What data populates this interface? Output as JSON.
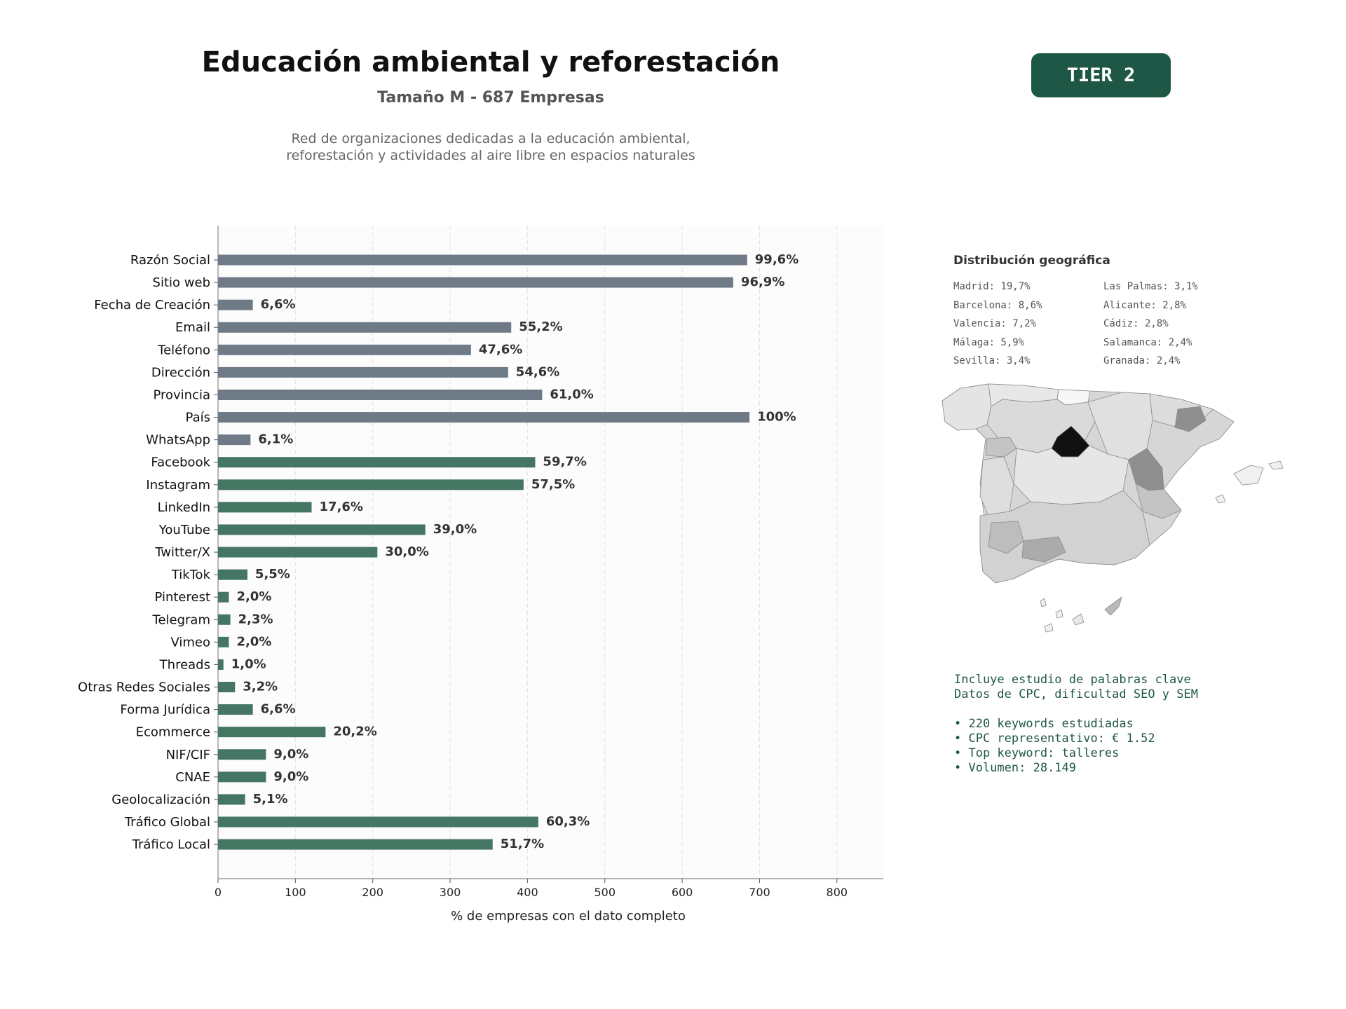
{
  "header": {
    "title": "Educación ambiental y reforestación",
    "subtitle": "Tamaño M - 687 Empresas",
    "description_line1": "Red de organizaciones dedicadas a la educación ambiental,",
    "description_line2": "reforestación y actividades al aire libre en espacios naturales",
    "tier_label": "TIER 2"
  },
  "colors": {
    "contact_bar": "#6e7a85",
    "social_bar": "#457563",
    "accent": "#1e5745"
  },
  "chart_data": {
    "type": "bar",
    "orientation": "horizontal",
    "xlabel": "% de empresas con el dato completo",
    "xlim": [
      0,
      860
    ],
    "xticks": [
      0,
      100,
      200,
      300,
      400,
      500,
      600,
      700,
      800
    ],
    "grid": "x-dashed",
    "categories": [
      "Razón Social",
      "Sitio web",
      "Fecha de Creación",
      "Email",
      "Teléfono",
      "Dirección",
      "Provincia",
      "País",
      "WhatsApp",
      "Facebook",
      "Instagram",
      "LinkedIn",
      "YouTube",
      "Twitter/X",
      "TikTok",
      "Pinterest",
      "Telegram",
      "Vimeo",
      "Threads",
      "Otras Redes Sociales",
      "Forma Jurídica",
      "Ecommerce",
      "NIF/CIF",
      "CNAE",
      "Geolocalización",
      "Tráfico Global",
      "Tráfico Local"
    ],
    "values": [
      684,
      666,
      45,
      379,
      327,
      375,
      419,
      687,
      42,
      410,
      395,
      121,
      268,
      206,
      38,
      14,
      16,
      14,
      7,
      22,
      45,
      139,
      62,
      62,
      35,
      414,
      355
    ],
    "labels": [
      "99,6%",
      "96,9%",
      "6,6%",
      "55,2%",
      "47,6%",
      "54,6%",
      "61,0%",
      "100%",
      "6,1%",
      "59,7%",
      "57,5%",
      "17,6%",
      "39,0%",
      "30,0%",
      "5,5%",
      "2,0%",
      "2,3%",
      "2,0%",
      "1,0%",
      "3,2%",
      "6,6%",
      "20,2%",
      "9,0%",
      "9,0%",
      "5,1%",
      "60,3%",
      "51,7%"
    ],
    "groups": [
      "contact",
      "contact",
      "contact",
      "contact",
      "contact",
      "contact",
      "contact",
      "contact",
      "contact",
      "social",
      "social",
      "social",
      "social",
      "social",
      "social",
      "social",
      "social",
      "social",
      "social",
      "social",
      "social",
      "social",
      "social",
      "social",
      "social",
      "social",
      "social"
    ]
  },
  "geo": {
    "title": "Distribución geográfica",
    "items": [
      "Madrid: 19,7%",
      "Las Palmas: 3,1%",
      "Barcelona: 8,6%",
      "Alicante: 2,8%",
      "Valencia: 7,2%",
      "Cádiz: 2,8%",
      "Málaga: 5,9%",
      "Salamanca: 2,4%",
      "Sevilla: 3,4%",
      "Granada: 2,4%"
    ]
  },
  "keywords": {
    "line1": "Incluye estudio de palabras clave",
    "line2": "Datos de CPC, dificultad SEO y SEM",
    "bullets": [
      "• 220 keywords estudiadas",
      "• CPC representativo: € 1.52",
      "• Top keyword: talleres",
      "• Volumen: 28.149"
    ]
  }
}
